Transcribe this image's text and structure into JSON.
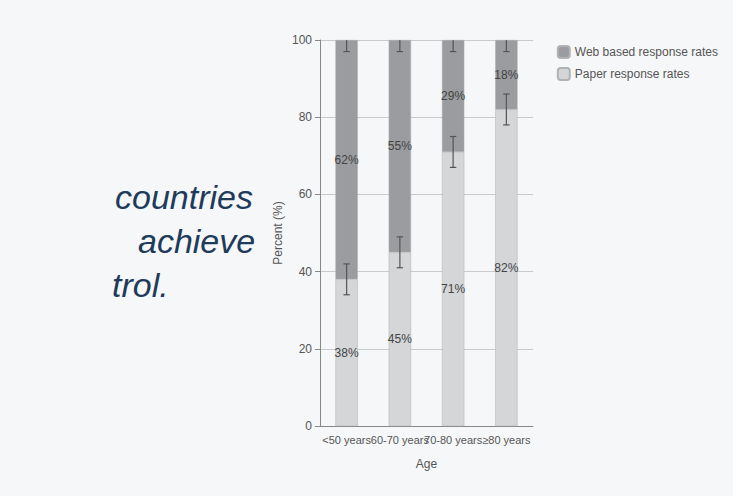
{
  "chart_data": {
    "type": "bar",
    "stacked": true,
    "x_label": "Age",
    "y_label": "Percent (%)",
    "categories": [
      "<50 years",
      "60-70 years",
      "70-80 years",
      "≥80 years"
    ],
    "series": [
      {
        "name": "Paper response rates",
        "color": "#d4d6d8",
        "values": [
          38,
          45,
          71,
          82
        ],
        "value_labels": [
          "38%",
          "45%",
          "71%",
          "82%"
        ],
        "errors": [
          4,
          4,
          4,
          4
        ]
      },
      {
        "name": "Web based response rates",
        "color": "#9a9c9f",
        "values": [
          62,
          55,
          29,
          18
        ],
        "value_labels": [
          "62%",
          "55%",
          "29%",
          "18%"
        ],
        "errors": [
          3,
          3,
          3,
          3
        ]
      }
    ],
    "ylim": [
      0,
      100
    ],
    "yticks": [
      0,
      20,
      40,
      60,
      80,
      100
    ],
    "grid": true,
    "legend": "top-right",
    "data_labels": true
  },
  "overlay": {
    "lines": [
      "countries",
      "achieve",
      "trol."
    ]
  }
}
